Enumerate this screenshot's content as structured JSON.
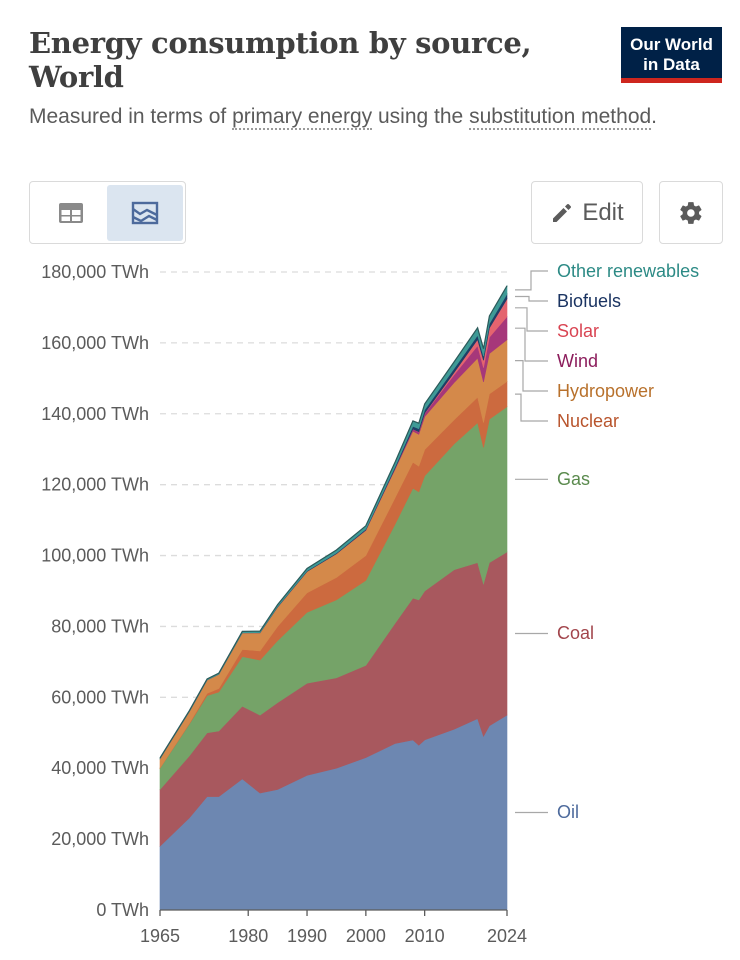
{
  "header": {
    "title": "Energy consumption by source, World",
    "subtitle_pre": "Measured in terms of ",
    "subtitle_link1": "primary energy",
    "subtitle_mid": " using the ",
    "subtitle_link2": "substitution method",
    "subtitle_post": ".",
    "logo_line1": "Our World",
    "logo_line2": "in Data"
  },
  "toolbar": {
    "table_icon": "table-icon",
    "chart_icon": "chart-icon",
    "edit_label": "Edit",
    "edit_icon": "pencil-icon",
    "settings_icon": "gear-icon",
    "selected_view": "chart"
  },
  "chart_data": {
    "type": "area",
    "stacked": true,
    "ylim": [
      0,
      180000
    ],
    "yticks": [
      0,
      20000,
      40000,
      60000,
      80000,
      100000,
      120000,
      140000,
      160000,
      180000
    ],
    "ytick_labels": [
      "0 TWh",
      "20,000 TWh",
      "40,000 TWh",
      "60,000 TWh",
      "80,000 TWh",
      "100,000 TWh",
      "120,000 TWh",
      "140,000 TWh",
      "160,000 TWh",
      "180,000 TWh"
    ],
    "xlim": [
      1965,
      2024
    ],
    "xticks": [
      1965,
      1980,
      1990,
      2000,
      2010,
      2024
    ],
    "xtick_labels": [
      "1965",
      "1980",
      "1990",
      "2000",
      "2010",
      "2024"
    ],
    "grid": "horizontal dashed",
    "legend_placement": "right, labels at series ends",
    "x": [
      1965,
      1970,
      1973,
      1975,
      1979,
      1982,
      1985,
      1990,
      1995,
      2000,
      2005,
      2008,
      2009,
      2010,
      2015,
      2019,
      2020,
      2021,
      2024
    ],
    "series": [
      {
        "name": "Oil",
        "color": "#6d87b1",
        "label_color": "#4d6a9c",
        "values": [
          18000,
          26000,
          32000,
          32000,
          37000,
          33000,
          34000,
          38000,
          40000,
          43000,
          47000,
          48000,
          46500,
          48000,
          51000,
          54000,
          49000,
          52000,
          55000
        ]
      },
      {
        "name": "Coal",
        "color": "#a8585e",
        "label_color": "#a2454c",
        "values": [
          16000,
          17500,
          18000,
          18500,
          20500,
          22000,
          24500,
          26000,
          25500,
          26000,
          34000,
          40000,
          41000,
          42000,
          45000,
          44000,
          43000,
          46000,
          46000
        ]
      },
      {
        "name": "Gas",
        "color": "#75a368",
        "label_color": "#5a8a4d",
        "values": [
          6000,
          9000,
          10500,
          11000,
          14000,
          15500,
          17500,
          20000,
          22000,
          24000,
          28000,
          31000,
          30500,
          32500,
          35500,
          39500,
          38500,
          40500,
          41000
        ]
      },
      {
        "name": "Nuclear",
        "color": "#cc6a3f",
        "label_color": "#b8542c",
        "values": [
          100,
          200,
          600,
          1000,
          2000,
          2600,
          4000,
          5500,
          6300,
          7000,
          7400,
          7300,
          7200,
          7400,
          6800,
          7200,
          7000,
          7100,
          7100
        ]
      },
      {
        "name": "Hydropower",
        "color": "#d4894a",
        "label_color": "#b8712c",
        "values": [
          2600,
          3300,
          3800,
          4000,
          4700,
          5100,
          5500,
          6000,
          6700,
          7100,
          8100,
          8800,
          9000,
          9300,
          10500,
          11000,
          11500,
          11400,
          11800
        ]
      },
      {
        "name": "Wind",
        "color": "#a6377a",
        "label_color": "#8c1d5c",
        "values": [
          0,
          0,
          0,
          0,
          0,
          0,
          0,
          10,
          20,
          80,
          250,
          550,
          700,
          900,
          2200,
          3500,
          4000,
          4600,
          6500
        ]
      },
      {
        "name": "Solar",
        "color": "#e4646f",
        "label_color": "#d94452",
        "values": [
          0,
          0,
          0,
          0,
          0,
          0,
          0,
          0,
          1,
          3,
          10,
          30,
          50,
          80,
          650,
          1750,
          2100,
          2600,
          5000
        ]
      },
      {
        "name": "Biofuels",
        "color": "#1f3e66",
        "label_color": "#1a3361",
        "values": [
          0,
          0,
          0,
          0,
          10,
          50,
          120,
          150,
          200,
          250,
          450,
          800,
          850,
          950,
          1100,
          1200,
          1150,
          1200,
          1400
        ]
      },
      {
        "name": "Other renewables",
        "color": "#3e9a96",
        "label_color": "#2c8a85",
        "values": [
          200,
          250,
          300,
          320,
          400,
          450,
          550,
          700,
          850,
          950,
          1300,
          1500,
          1550,
          1650,
          1900,
          2100,
          2100,
          2200,
          2300
        ]
      }
    ]
  }
}
